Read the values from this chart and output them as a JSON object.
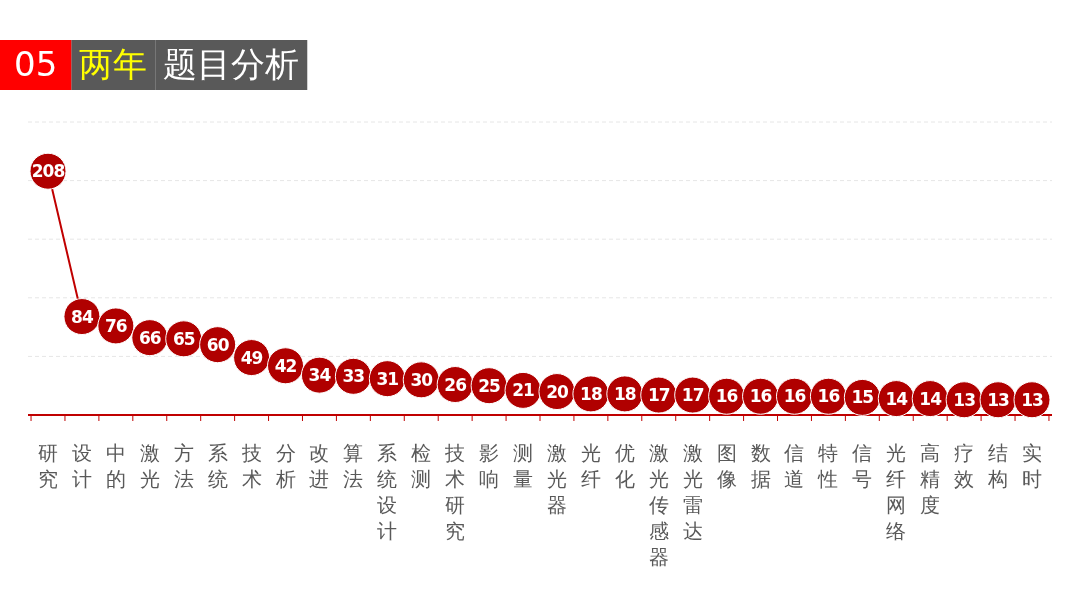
{
  "chart_data": {
    "type": "line",
    "title": "05 两年 题目分析",
    "categories": [
      "研究",
      "设计",
      "中的",
      "激光",
      "方法",
      "系统",
      "技术",
      "分析",
      "改进",
      "算法",
      "系统设计",
      "检测",
      "技术研究",
      "影响",
      "测量",
      "激光器",
      "光纤",
      "优化",
      "激光传感器",
      "激光雷达",
      "图像",
      "数据",
      "信道",
      "特性",
      "信号",
      "光纤网络",
      "高精度",
      "疗效",
      "结构",
      "实时"
    ],
    "series": [
      {
        "color": "#c00000",
        "values": [
          208,
          84,
          76,
          66,
          65,
          60,
          49,
          42,
          34,
          33,
          31,
          30,
          26,
          25,
          21,
          20,
          18,
          18,
          17,
          17,
          16,
          16,
          16,
          16,
          15,
          14,
          14,
          13,
          13,
          13
        ]
      }
    ],
    "ylim": [
      0,
      250
    ],
    "yticks": [
      {
        "value": 0,
        "label": null
      },
      {
        "value": 50,
        "label": null
      },
      {
        "value": 100,
        "label": null
      },
      {
        "value": 150,
        "label": null
      },
      {
        "value": 200,
        "label": null
      },
      {
        "value": 250,
        "label": null
      }
    ],
    "tick_labels": "x",
    "grid": "y",
    "marker": "circle",
    "line_style": "solid",
    "data_labels": true
  }
}
